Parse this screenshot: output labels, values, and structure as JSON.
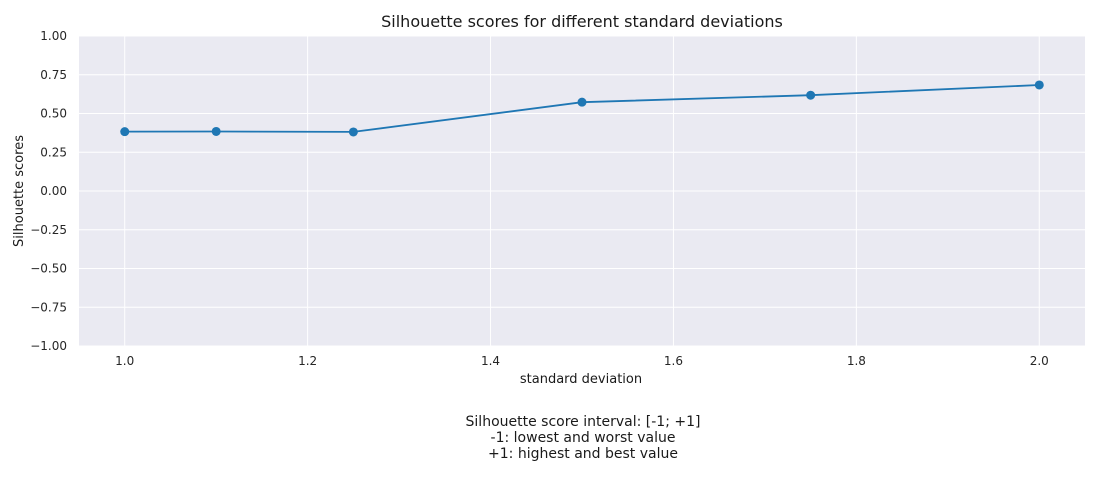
{
  "chart_data": {
    "type": "line",
    "title": "Silhouette scores for different standard deviations",
    "xlabel": "standard deviation",
    "ylabel": "Silhouette scores",
    "xlim": [
      0.95,
      2.05
    ],
    "ylim": [
      -1.0,
      1.0
    ],
    "x_ticks": [
      1.0,
      1.2,
      1.4,
      1.6,
      1.8,
      2.0
    ],
    "x_tick_labels": [
      "1.0",
      "1.2",
      "1.4",
      "1.6",
      "1.8",
      "2.0"
    ],
    "y_ticks": [
      1.0,
      0.75,
      0.5,
      0.25,
      0.0,
      -0.25,
      -0.5,
      -0.75,
      -1.0
    ],
    "y_tick_labels": [
      "1.00",
      "0.75",
      "0.50",
      "0.25",
      "0.00",
      "−0.25",
      "−0.50",
      "−0.75",
      "−1.00"
    ],
    "grid": true,
    "series": [
      {
        "x": [
          1.0,
          1.1,
          1.25,
          1.5,
          1.75,
          2.0
        ],
        "y": [
          0.383,
          0.384,
          0.381,
          0.573,
          0.618,
          0.684
        ],
        "color": "#1f77b4",
        "marker": "circle"
      }
    ],
    "background": "#eaeaf2"
  },
  "caption": {
    "line1": "Silhouette score interval: [-1; +1]",
    "line2": "-1: lowest and worst value",
    "line3": "+1: highest and best value"
  }
}
